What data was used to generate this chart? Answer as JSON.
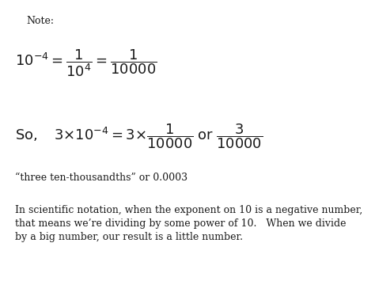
{
  "bg_color": "#ffffff",
  "text_color": "#1a1a1a",
  "note_label": "Note:",
  "line3_text": "“three ten-thousandths” or 0.0003",
  "line4_text": "In scientific notation, when the exponent on 10 is a negative number,\nthat means we’re dividing by some power of 10.   When we divide\nby a big number, our result is a little number.",
  "note_fontsize": 9,
  "math_fontsize": 13,
  "small_fontsize": 9,
  "body_fontsize": 9
}
